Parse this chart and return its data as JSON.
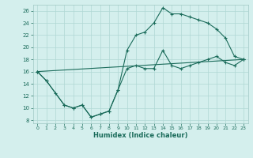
{
  "xlabel": "Humidex (Indice chaleur)",
  "bg_color": "#d4efed",
  "line_color": "#1a6b5a",
  "grid_color": "#b0d8d4",
  "xlim": [
    -0.5,
    23.5
  ],
  "ylim": [
    7.5,
    27.0
  ],
  "xticks": [
    0,
    1,
    2,
    3,
    4,
    5,
    6,
    7,
    8,
    9,
    10,
    11,
    12,
    13,
    14,
    15,
    16,
    17,
    18,
    19,
    20,
    21,
    22,
    23
  ],
  "yticks": [
    8,
    10,
    12,
    14,
    16,
    18,
    20,
    22,
    24,
    26
  ],
  "line1_x": [
    0,
    1,
    2,
    3,
    4,
    5,
    6,
    7,
    8,
    9,
    10,
    11,
    12,
    13,
    14,
    15,
    16,
    17,
    18,
    19,
    20,
    21,
    22,
    23
  ],
  "line1_y": [
    16,
    14.5,
    12.5,
    10.5,
    10.0,
    10.5,
    8.5,
    9.0,
    9.5,
    13.0,
    19.5,
    22.0,
    22.5,
    24.0,
    26.5,
    25.5,
    25.5,
    25.0,
    24.5,
    24.0,
    23.0,
    21.5,
    18.5,
    18.0
  ],
  "line2_x": [
    0,
    1,
    3,
    4,
    5,
    6,
    7,
    8,
    9,
    10,
    11,
    12,
    13,
    14,
    15,
    16,
    17,
    18,
    19,
    20,
    21,
    22,
    23
  ],
  "line2_y": [
    16,
    14.5,
    10.5,
    10.0,
    10.5,
    8.5,
    9.0,
    9.5,
    13.0,
    16.5,
    17.0,
    16.5,
    16.5,
    19.5,
    17.0,
    16.5,
    17.0,
    17.5,
    18.0,
    18.5,
    17.5,
    17.0,
    18.0
  ],
  "line3_x": [
    0,
    23
  ],
  "line3_y": [
    16,
    18
  ]
}
